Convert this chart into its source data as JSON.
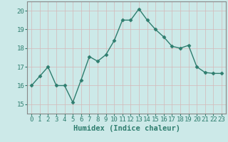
{
  "x": [
    0,
    1,
    2,
    3,
    4,
    5,
    6,
    7,
    8,
    9,
    10,
    11,
    12,
    13,
    14,
    15,
    16,
    17,
    18,
    19,
    20,
    21,
    22,
    23
  ],
  "y": [
    16.0,
    16.5,
    17.0,
    16.0,
    16.0,
    15.1,
    16.3,
    17.55,
    17.3,
    17.65,
    18.4,
    19.5,
    19.5,
    20.1,
    19.5,
    19.0,
    18.6,
    18.1,
    18.0,
    18.15,
    17.0,
    16.7,
    16.65,
    16.65
  ],
  "xlabel": "Humidex (Indice chaleur)",
  "ylabel": "",
  "ylim": [
    14.5,
    20.5
  ],
  "xlim": [
    -0.5,
    23.5
  ],
  "yticks": [
    15,
    16,
    17,
    18,
    19,
    20
  ],
  "xticks": [
    0,
    1,
    2,
    3,
    4,
    5,
    6,
    7,
    8,
    9,
    10,
    11,
    12,
    13,
    14,
    15,
    16,
    17,
    18,
    19,
    20,
    21,
    22,
    23
  ],
  "line_color": "#2e7d6e",
  "marker": "D",
  "marker_size": 2.5,
  "bg_color": "#cce9e8",
  "grid_color_v": "#d4b8b8",
  "grid_color_h": "#d4b8b8",
  "xlabel_fontsize": 7.5,
  "tick_fontsize": 6.5,
  "line_width": 1.0,
  "spine_color": "#888888"
}
